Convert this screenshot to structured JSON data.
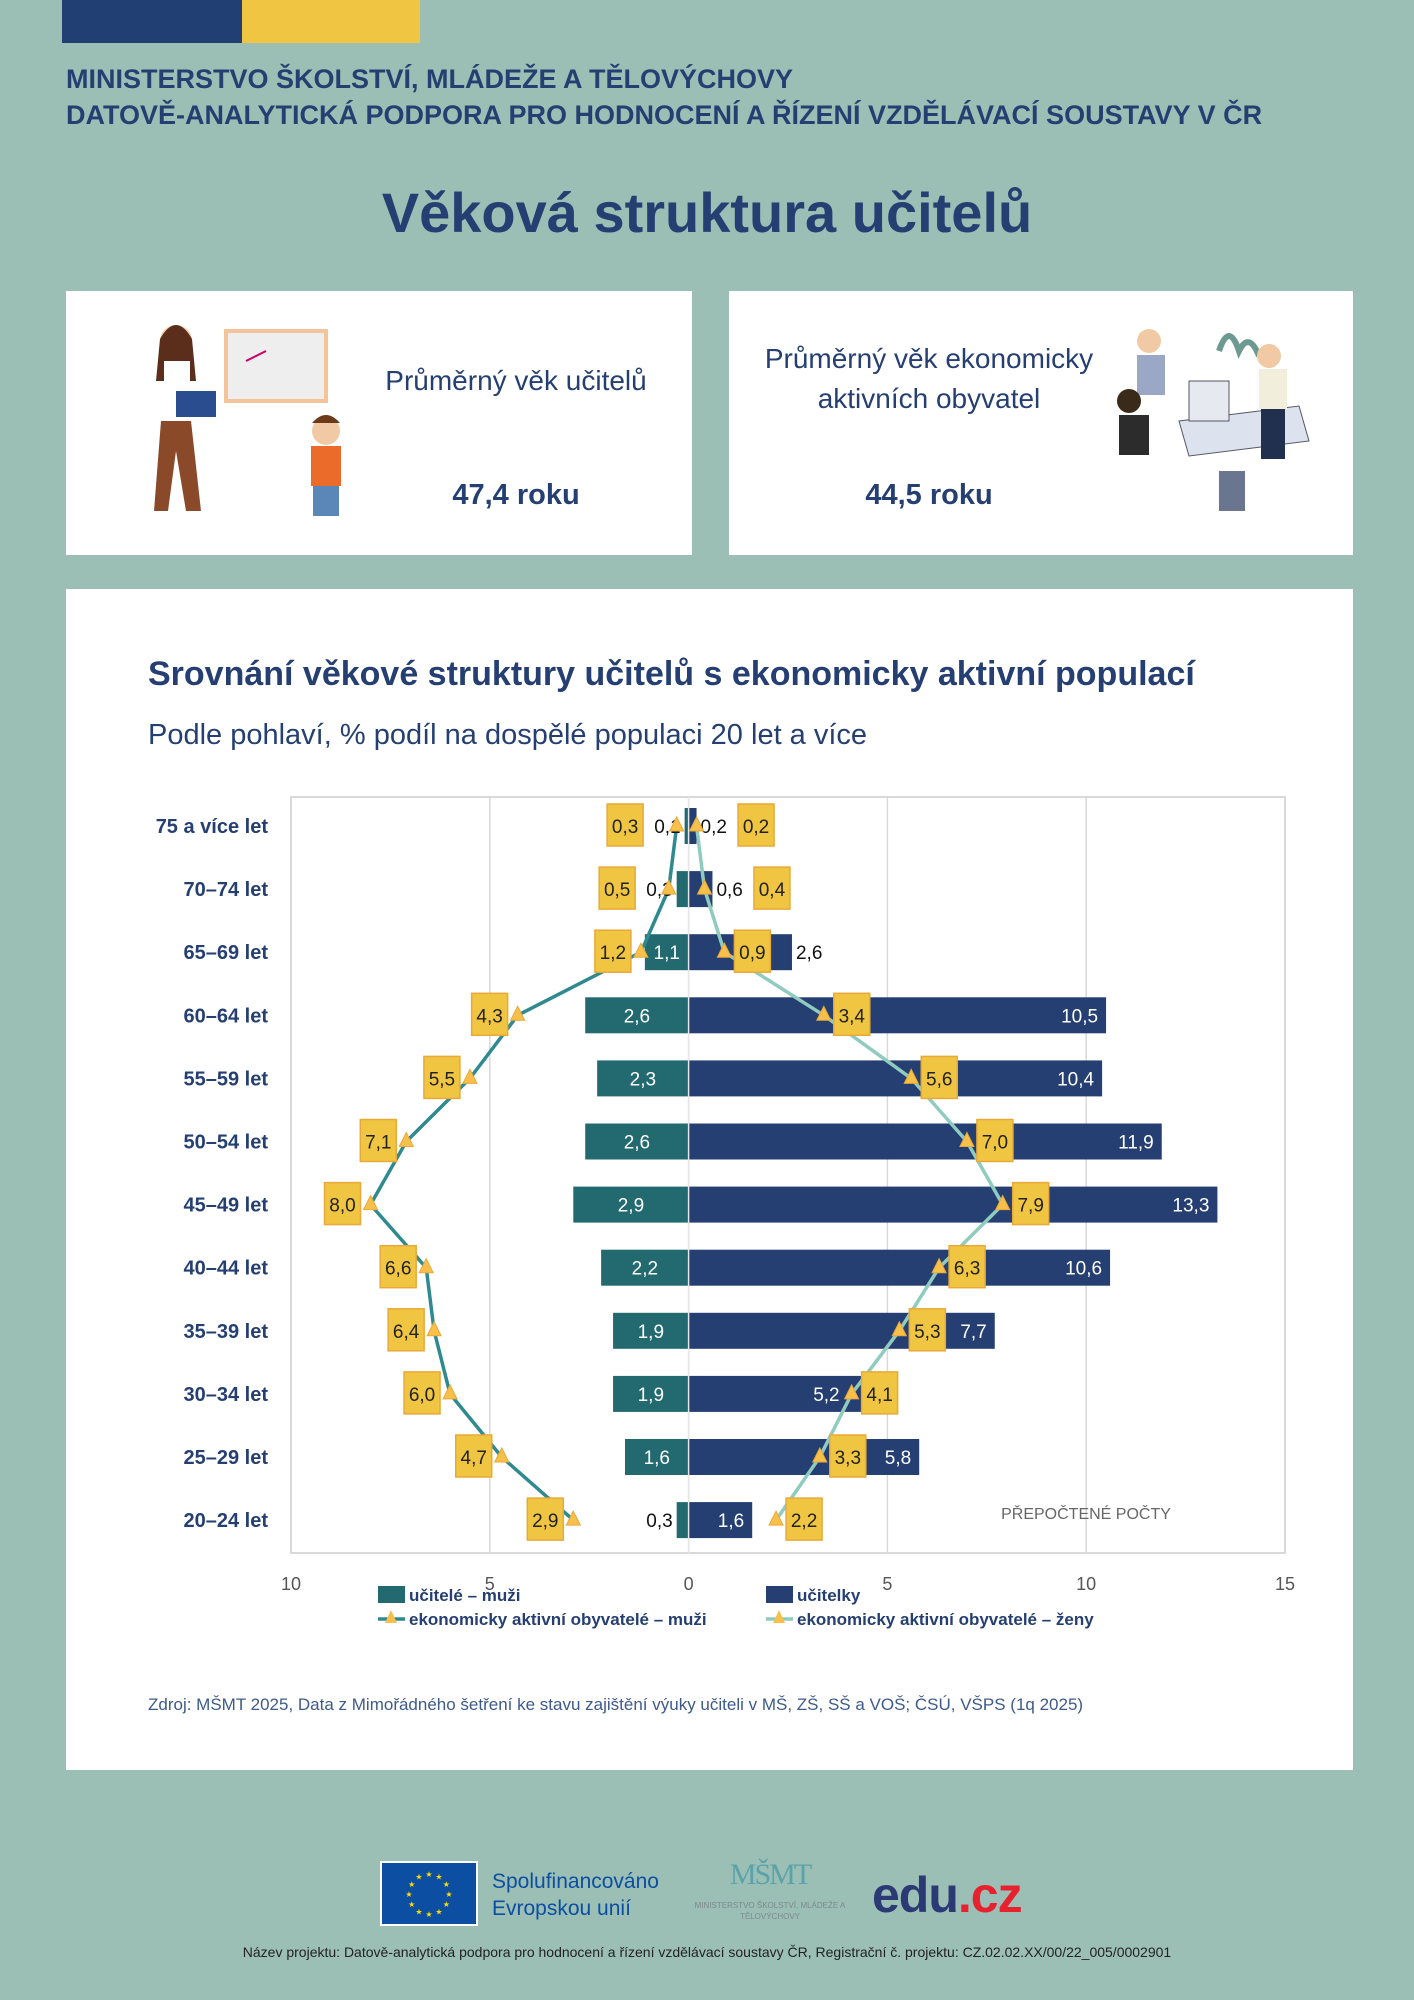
{
  "header": {
    "line1": "MINISTERSTVO ŠKOLSTVÍ, MLÁDEŽE A TĚLOVÝCHOVY",
    "line2": "DATOVĚ-ANALYTICKÁ PODPORA PRO HODNOCENÍ A ŘÍZENÍ VZDĚLÁVACÍ SOUSTAVY V ČR",
    "title": "Věková struktura učitelů",
    "brand_colors": {
      "blue": "#213f72",
      "yellow": "#f0c542"
    }
  },
  "cards": [
    {
      "label": "Průměrný věk učitelů",
      "value": "47,4 roku",
      "illustration": "teacher-with-child"
    },
    {
      "label": "Průměrný věk ekonomicky aktivních obyvatel",
      "value": "44,5 roku",
      "illustration": "office-workers"
    }
  ],
  "chart_data": {
    "type": "bar",
    "orientation": "horizontal population pyramid with line overlays",
    "title": "Srovnání věkové struktury učitelů s ekonomicky aktivní populací",
    "subtitle": "Podle pohlaví, % podíl na dospělé populaci 20 let a více",
    "annotation": "PŘEPOČTENÉ POČTY",
    "categories": [
      "75 a více let",
      "70–74 let",
      "65–69 let",
      "60–64 let",
      "55–59 let",
      "50–54 let",
      "45–49 let",
      "40–44 let",
      "35–39 let",
      "30–34 let",
      "25–29 let",
      "20–24 let"
    ],
    "xlim": [
      -10,
      15
    ],
    "xticks": [
      "10",
      "5",
      "0",
      "5",
      "10",
      "15"
    ],
    "grid": true,
    "legend_placement": "bottom",
    "series": [
      {
        "name": "učitelé – muži",
        "kind": "bar",
        "side": "left",
        "color": "#226a70",
        "values": [
          0.1,
          0.3,
          1.1,
          2.6,
          2.3,
          2.6,
          2.9,
          2.2,
          1.9,
          1.9,
          1.6,
          0.3
        ],
        "labels": [
          "0,1",
          "0,3",
          "1,1",
          "2,6",
          "2,3",
          "2,6",
          "2,9",
          "2,2",
          "1,9",
          "1,9",
          "1,6",
          "0,3"
        ]
      },
      {
        "name": "učitelky",
        "kind": "bar",
        "side": "right",
        "color": "#253f72",
        "values": [
          0.2,
          0.6,
          2.6,
          10.5,
          10.4,
          11.9,
          13.3,
          10.6,
          7.7,
          5.2,
          5.8,
          1.6
        ],
        "labels": [
          "0,2",
          "0,6",
          "2,6",
          "10,5",
          "10,4",
          "11,9",
          "13,3",
          "10,6",
          "7,7",
          "5,2",
          "5,8",
          "1,6"
        ]
      },
      {
        "name": "ekonomicky aktivní obyvatelé – muži",
        "kind": "line",
        "side": "left",
        "color": "#2f8a90",
        "values": [
          0.3,
          0.5,
          1.2,
          4.3,
          5.5,
          7.1,
          8.0,
          6.6,
          6.4,
          6.0,
          4.7,
          2.9
        ],
        "labels": [
          "0,3",
          "0,5",
          "1,2",
          "4,3",
          "5,5",
          "7,1",
          "8,0",
          "6,6",
          "6,4",
          "6,0",
          "4,7",
          "2,9"
        ]
      },
      {
        "name": "ekonomicky aktivní obyvatelé – ženy",
        "kind": "line",
        "side": "right",
        "color": "#8fcbbf",
        "values": [
          0.2,
          0.4,
          0.9,
          3.4,
          5.6,
          7.0,
          7.9,
          6.3,
          5.3,
          4.1,
          3.3,
          2.2
        ],
        "labels": [
          "0,2",
          "0,4",
          "0,9",
          "3,4",
          "5,6",
          "7,0",
          "7,9",
          "6,3",
          "5,3",
          "4,1",
          "3,3",
          "2,2"
        ]
      }
    ],
    "marker_color": "#f6c04a",
    "label_box_color": "#f0c542"
  },
  "source": "Zdroj: MŠMT 2025, Data z Mimořádného šetření ke stavu zajištění výuky učiteli v MŠ, ZŠ, SŠ a VOŠ; ČSÚ, VŠPS (1q 2025)",
  "footer": {
    "eu_line1": "Spolufinancováno",
    "eu_line2": "Evropskou unií",
    "msmt_logo": "MŠMT",
    "msmt_caption": "MINISTERSTVO ŠKOLSTVÍ, MLÁDEŽE A TĚLOVÝCHOVY",
    "edu_part1": "edu",
    "edu_part2": ".cz",
    "project": "Název projektu: Datově-analytická podpora pro hodnocení a řízení vzdělávací soustavy ČR, Registrační č. projektu: CZ.02.02.XX/00/22_005/0002901"
  }
}
